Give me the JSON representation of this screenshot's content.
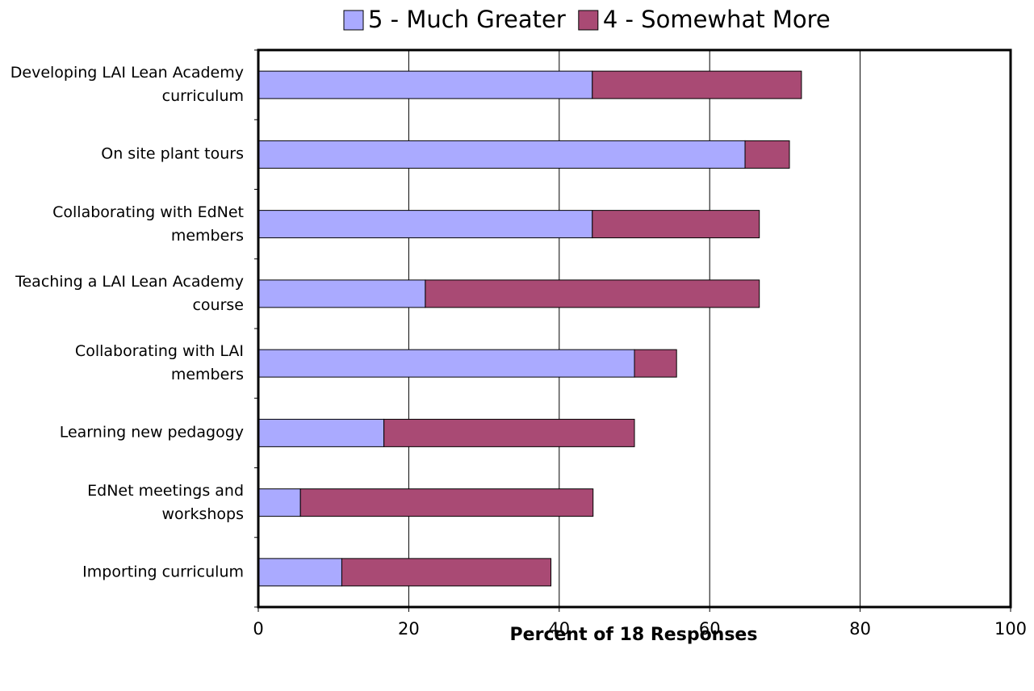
{
  "chart_data": {
    "type": "stacked-barh",
    "x_label": "Percent of 18 Responses",
    "categories": [
      "Developing LAI Lean Academy curriculum",
      "On site plant tours",
      "Collaborating with EdNet members",
      "Teaching a LAI Lean Academy course",
      "Collaborating with LAI members",
      "Learning new pedagogy",
      "EdNet meetings and workshops",
      "Importing curriculum"
    ],
    "series": [
      {
        "name": "5 - Much Greater",
        "color": "#aaaaff",
        "values": [
          44.4,
          64.7,
          44.4,
          22.2,
          50.0,
          16.7,
          5.6,
          11.1
        ]
      },
      {
        "name": "4 - Somewhat More",
        "color": "#a94a74",
        "values": [
          27.8,
          5.9,
          22.2,
          44.4,
          5.6,
          33.3,
          38.9,
          27.8
        ]
      }
    ],
    "xlim": [
      0,
      100
    ],
    "xticks": [
      0,
      20,
      40,
      60,
      80,
      100
    ],
    "grid": true,
    "legend": "top"
  }
}
